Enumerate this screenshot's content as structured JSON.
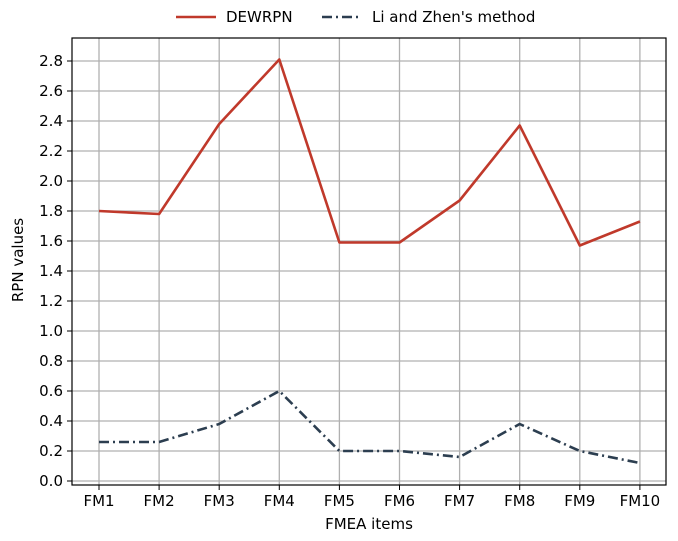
{
  "chart_data": {
    "type": "line",
    "xlabel": "FMEA items",
    "ylabel": "RPN values",
    "categories": [
      "FM1",
      "FM2",
      "FM3",
      "FM4",
      "FM5",
      "FM6",
      "FM7",
      "FM8",
      "FM9",
      "FM10"
    ],
    "ylim": [
      0,
      2.9
    ],
    "yticks": [
      "0.0",
      "0.2",
      "0.4",
      "0.6",
      "0.8",
      "1.0",
      "1.2",
      "1.4",
      "1.6",
      "1.8",
      "2.0",
      "2.2",
      "2.4",
      "2.6",
      "2.8"
    ],
    "grid": true,
    "legend_position": "top-center",
    "series": [
      {
        "name": "DEWRPN",
        "color": "#c0392b",
        "line_style": "solid",
        "values": [
          1.8,
          1.78,
          2.38,
          2.81,
          1.59,
          1.59,
          1.87,
          2.37,
          1.57,
          1.73
        ]
      },
      {
        "name": "Li and Zhen's method",
        "color": "#2c3e50",
        "line_style": "dash-dot",
        "values": [
          0.26,
          0.26,
          0.38,
          0.6,
          0.2,
          0.2,
          0.16,
          0.38,
          0.2,
          0.12
        ]
      }
    ]
  }
}
